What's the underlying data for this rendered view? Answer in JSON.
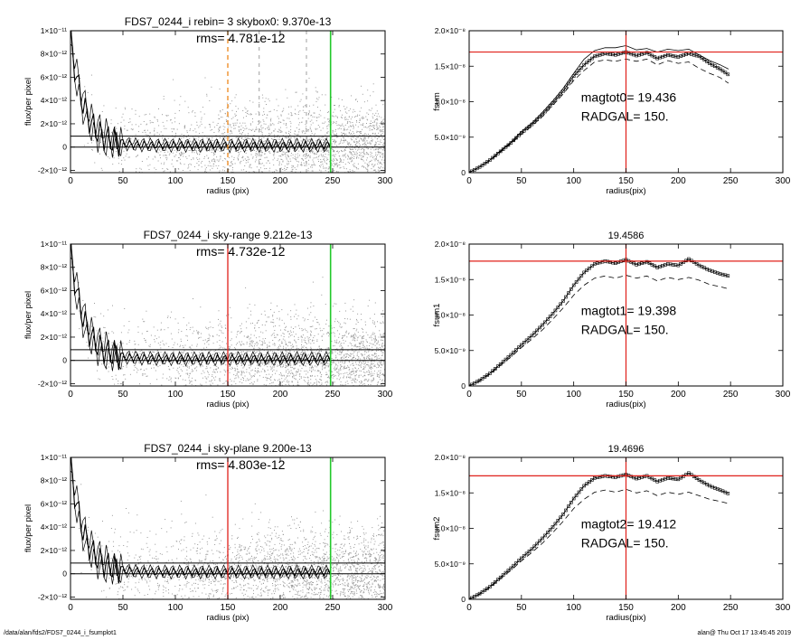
{
  "colors": {
    "scatter": "#9a9a9a",
    "axis": "#000000",
    "profile": "#000000",
    "marker_red": "#e0201a",
    "marker_green": "#22c92a",
    "marker_orange": "#f0902a"
  },
  "footer": {
    "path": "/data/alan/fds2/FDS7_0244_i_fsumplot1",
    "stamp": "alan@  Thu Oct 17 13:45:45 2019"
  },
  "chart_data": [
    {
      "type": "scatter",
      "title": "FDS7_0244_i rebin= 3    skybox0:  9.370e-13",
      "annotation": "rms= 4.781e-12",
      "xlabel": "radius (pix)",
      "ylabel": "flux/per pixel",
      "xlim": [
        0,
        300
      ],
      "ylim": [
        -2.2e-12,
        1e-11
      ],
      "xticks": [
        "0",
        "50",
        "100",
        "150",
        "200",
        "250",
        "300"
      ],
      "yticks": [
        "1×10⁻¹¹",
        "8×10⁻¹²",
        "6×10⁻¹²",
        "4×10⁻¹²",
        "2×10⁻¹²",
        "0",
        "-2×10⁻¹²"
      ],
      "ytick_values": [
        1e-11,
        8e-12,
        6e-12,
        4e-12,
        2e-12,
        0,
        -2e-12
      ],
      "hlines": [
        0,
        9.37e-13
      ],
      "vlines": [
        {
          "x": 150,
          "style": "orange-dashed"
        },
        {
          "x": 248,
          "style": "green"
        },
        {
          "x": 180,
          "style": "gray-dashed"
        },
        {
          "x": 225,
          "style": "gray-dashed"
        }
      ]
    },
    {
      "type": "line",
      "title": "",
      "annotation_lines": [
        "magtot0=  19.436",
        "RADGAL=    150."
      ],
      "xlabel": "radius(pix)",
      "ylabel": "fsum",
      "xlim": [
        0,
        300
      ],
      "ylim": [
        0,
        2e-08
      ],
      "xticks": [
        "0",
        "50",
        "100",
        "150",
        "200",
        "250",
        "300"
      ],
      "yticks": [
        "2.0×10⁻⁸",
        "1.5×10⁻⁸",
        "1.0×10⁻⁸",
        "5.0×10⁻⁹",
        "0"
      ],
      "ytick_values": [
        2e-08,
        1.5e-08,
        1e-08,
        5e-09,
        0
      ],
      "hline": 1.7e-08,
      "vline": 150,
      "x": [
        0,
        10,
        20,
        30,
        40,
        50,
        60,
        70,
        80,
        90,
        100,
        110,
        120,
        130,
        140,
        150,
        160,
        170,
        180,
        190,
        200,
        210,
        220,
        230,
        240,
        248
      ],
      "series": [
        {
          "values": [
            0,
            0.08,
            0.18,
            0.3,
            0.42,
            0.56,
            0.68,
            0.82,
            0.98,
            1.15,
            1.36,
            1.52,
            1.64,
            1.68,
            1.66,
            1.7,
            1.65,
            1.69,
            1.61,
            1.66,
            1.63,
            1.68,
            1.64,
            1.54,
            1.46,
            1.38
          ]
        },
        {
          "values": [
            0,
            0.08,
            0.18,
            0.31,
            0.43,
            0.58,
            0.7,
            0.85,
            1.01,
            1.19,
            1.4,
            1.6,
            1.72,
            1.76,
            1.76,
            1.79,
            1.73,
            1.75,
            1.7,
            1.74,
            1.72,
            1.74,
            1.66,
            1.58,
            1.52,
            1.46
          ]
        },
        {
          "values": [
            0,
            0.08,
            0.17,
            0.29,
            0.41,
            0.54,
            0.66,
            0.79,
            0.95,
            1.11,
            1.3,
            1.44,
            1.56,
            1.59,
            1.57,
            1.6,
            1.57,
            1.6,
            1.52,
            1.58,
            1.54,
            1.56,
            1.47,
            1.4,
            1.34,
            1.26
          ]
        }
      ]
    },
    {
      "type": "scatter",
      "title": "FDS7_0244_i sky-range  9.212e-13",
      "annotation": "rms= 4.732e-12",
      "xlabel": "radius (pix)",
      "ylabel": "flux/per pixel",
      "xlim": [
        0,
        300
      ],
      "ylim": [
        -2.2e-12,
        1e-11
      ],
      "xticks": [
        "0",
        "50",
        "100",
        "150",
        "200",
        "250",
        "300"
      ],
      "yticks": [
        "1×10⁻¹¹",
        "8×10⁻¹²",
        "6×10⁻¹²",
        "4×10⁻¹²",
        "2×10⁻¹²",
        "0",
        "-2×10⁻¹²"
      ],
      "ytick_values": [
        1e-11,
        8e-12,
        6e-12,
        4e-12,
        2e-12,
        0,
        -2e-12
      ],
      "hlines": [
        0,
        9.21e-13
      ],
      "vlines": [
        {
          "x": 150,
          "style": "red"
        },
        {
          "x": 248,
          "style": "green"
        }
      ]
    },
    {
      "type": "line",
      "title": "19.4586",
      "annotation_lines": [
        "magtot1=  19.398",
        "RADGAL=    150."
      ],
      "xlabel": "radius(pix)",
      "ylabel": "fsum1",
      "xlim": [
        0,
        300
      ],
      "ylim": [
        0,
        2e-08
      ],
      "xticks": [
        "0",
        "50",
        "100",
        "150",
        "200",
        "250",
        "300"
      ],
      "yticks": [
        "2.0×10⁻⁸",
        "1.5×10⁻⁸",
        "1.0×10⁻⁸",
        "5.0×10⁻⁹",
        "0"
      ],
      "ytick_values": [
        2e-08,
        1.5e-08,
        1e-08,
        5e-09,
        0
      ],
      "hline": 1.76e-08,
      "vline": 150,
      "x": [
        0,
        10,
        20,
        30,
        40,
        50,
        60,
        70,
        80,
        90,
        100,
        110,
        120,
        130,
        140,
        150,
        160,
        170,
        180,
        190,
        200,
        210,
        220,
        230,
        240,
        248
      ],
      "series": [
        {
          "values": [
            0,
            0.08,
            0.18,
            0.31,
            0.44,
            0.58,
            0.71,
            0.86,
            1.02,
            1.2,
            1.42,
            1.6,
            1.72,
            1.76,
            1.73,
            1.78,
            1.71,
            1.75,
            1.67,
            1.72,
            1.7,
            1.79,
            1.7,
            1.63,
            1.58,
            1.55
          ]
        },
        {
          "values": [
            0,
            0.07,
            0.17,
            0.29,
            0.41,
            0.54,
            0.66,
            0.79,
            0.94,
            1.1,
            1.28,
            1.42,
            1.52,
            1.55,
            1.52,
            1.56,
            1.52,
            1.55,
            1.48,
            1.53,
            1.5,
            1.53,
            1.49,
            1.43,
            1.4,
            1.37
          ]
        }
      ]
    },
    {
      "type": "scatter",
      "title": "FDS7_0244_i sky-plane  9.200e-13",
      "annotation": "rms= 4.803e-12",
      "xlabel": "radius (pix)",
      "ylabel": "flux/per pixel",
      "xlim": [
        0,
        300
      ],
      "ylim": [
        -2.2e-12,
        1e-11
      ],
      "xticks": [
        "0",
        "50",
        "100",
        "150",
        "200",
        "250",
        "300"
      ],
      "yticks": [
        "1×10⁻¹¹",
        "8×10⁻¹²",
        "6×10⁻¹²",
        "4×10⁻¹²",
        "2×10⁻¹²",
        "0",
        "-2×10⁻¹²"
      ],
      "ytick_values": [
        1e-11,
        8e-12,
        6e-12,
        4e-12,
        2e-12,
        0,
        -2e-12
      ],
      "hlines": [
        0,
        9.2e-13
      ],
      "vlines": [
        {
          "x": 150,
          "style": "red"
        },
        {
          "x": 248,
          "style": "green"
        }
      ]
    },
    {
      "type": "line",
      "title": "19.4696",
      "annotation_lines": [
        "magtot2=  19.412",
        "RADGAL=    150."
      ],
      "xlabel": "radius(pix)",
      "ylabel": "fsum2",
      "xlim": [
        0,
        300
      ],
      "ylim": [
        0,
        2e-08
      ],
      "xticks": [
        "0",
        "50",
        "100",
        "150",
        "200",
        "250",
        "300"
      ],
      "yticks": [
        "2.0×10⁻⁸",
        "1.5×10⁻⁸",
        "1.0×10⁻⁸",
        "5.0×10⁻⁹",
        "0"
      ],
      "ytick_values": [
        2e-08,
        1.5e-08,
        1e-08,
        5e-09,
        0
      ],
      "hline": 1.74e-08,
      "vline": 150,
      "x": [
        0,
        10,
        20,
        30,
        40,
        50,
        60,
        70,
        80,
        90,
        100,
        110,
        120,
        130,
        140,
        150,
        160,
        170,
        180,
        190,
        200,
        210,
        220,
        230,
        240,
        248
      ],
      "series": [
        {
          "values": [
            0,
            0.08,
            0.18,
            0.31,
            0.44,
            0.58,
            0.71,
            0.86,
            1.02,
            1.2,
            1.42,
            1.6,
            1.71,
            1.74,
            1.72,
            1.76,
            1.7,
            1.74,
            1.66,
            1.71,
            1.69,
            1.78,
            1.68,
            1.6,
            1.54,
            1.49
          ]
        },
        {
          "values": [
            0,
            0.07,
            0.17,
            0.29,
            0.41,
            0.54,
            0.66,
            0.79,
            0.94,
            1.1,
            1.28,
            1.41,
            1.51,
            1.54,
            1.51,
            1.55,
            1.5,
            1.53,
            1.46,
            1.51,
            1.48,
            1.51,
            1.46,
            1.41,
            1.38,
            1.35
          ]
        }
      ]
    }
  ]
}
